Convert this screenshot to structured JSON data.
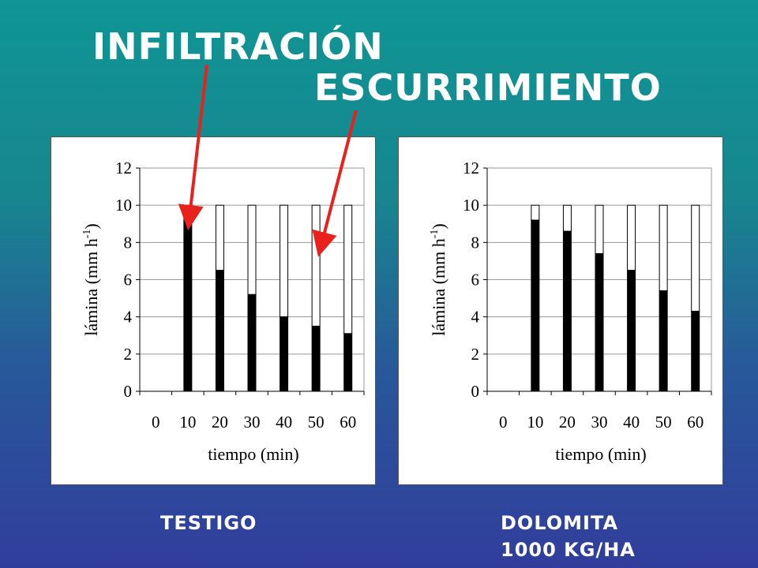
{
  "annotations": {
    "infiltration_label": "INFILTRACIÓN",
    "runoff_label": "ESCURRIMIENTO"
  },
  "captions": {
    "left": "TESTIGO",
    "right_line1": "DOLOMITA",
    "right_line2": "1000 KG/HA"
  },
  "colors": {
    "background_top": "#0f9594",
    "background_bottom": "#313d9c",
    "infiltration_fill": "#000000",
    "runoff_fill": "#ffffff",
    "arrow": "#e8211c"
  },
  "chart_data": [
    {
      "type": "bar",
      "stacked": true,
      "title": "",
      "xlabel": "tiempo (min)",
      "ylabel": "lámina (mm h-1)",
      "ylabel_parts": {
        "main": "lámina (mm h",
        "sup": "-1",
        "close": ")"
      },
      "xticks": [
        "0",
        "10",
        "20",
        "30",
        "40",
        "50",
        "60"
      ],
      "yticks": [
        "0",
        "2",
        "4",
        "6",
        "8",
        "10",
        "12"
      ],
      "ylim": [
        0,
        12
      ],
      "categories": [
        "10",
        "20",
        "30",
        "40",
        "50",
        "60"
      ],
      "total": [
        10,
        10,
        10,
        10,
        10,
        10
      ],
      "series": [
        {
          "values": [
            9.4,
            6.5,
            5.2,
            4.0,
            3.5,
            3.1
          ]
        },
        {
          "values": [
            0.6,
            3.5,
            4.8,
            6.0,
            6.5,
            6.9
          ]
        }
      ],
      "grid": true
    },
    {
      "type": "bar",
      "stacked": true,
      "title": "",
      "xlabel": "tiempo (min)",
      "ylabel": "lámina (mm h-1)",
      "ylabel_parts": {
        "main": "lámina (mm h",
        "sup": "-1",
        "close": ")"
      },
      "xticks": [
        "0",
        "10",
        "20",
        "30",
        "40",
        "50",
        "60"
      ],
      "yticks": [
        "0",
        "2",
        "4",
        "6",
        "8",
        "10",
        "12"
      ],
      "ylim": [
        0,
        12
      ],
      "categories": [
        "10",
        "20",
        "30",
        "40",
        "50",
        "60"
      ],
      "total": [
        10,
        10,
        10,
        10,
        10,
        10
      ],
      "series": [
        {
          "values": [
            9.2,
            8.6,
            7.4,
            6.5,
            5.4,
            4.3
          ]
        },
        {
          "values": [
            0.8,
            1.4,
            2.6,
            3.5,
            4.6,
            5.7
          ]
        }
      ],
      "grid": true
    }
  ]
}
